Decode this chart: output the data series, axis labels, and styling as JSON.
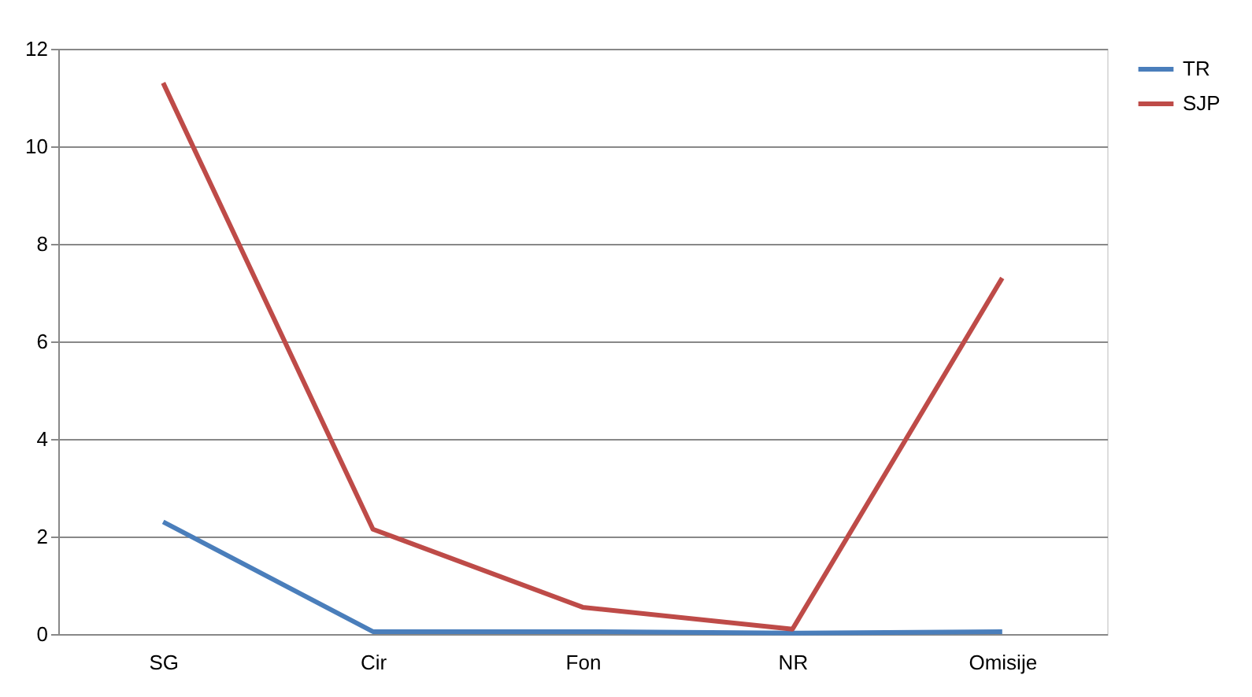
{
  "chart_data": {
    "type": "line",
    "categories": [
      "SG",
      "Cir",
      "Fon",
      "NR",
      "Omisije"
    ],
    "series": [
      {
        "name": "TR",
        "color": "#4a7ebb",
        "values": [
          2.3,
          0.05,
          0.05,
          0.02,
          0.05
        ]
      },
      {
        "name": "SJP",
        "color": "#be4b48",
        "values": [
          11.3,
          2.15,
          0.55,
          0.1,
          7.3
        ]
      }
    ],
    "ylim": [
      0,
      12
    ],
    "yticks": [
      0,
      2,
      4,
      6,
      8,
      10,
      12
    ],
    "grid": "y",
    "legend": "right",
    "marker": "none",
    "line_style": "solid"
  }
}
